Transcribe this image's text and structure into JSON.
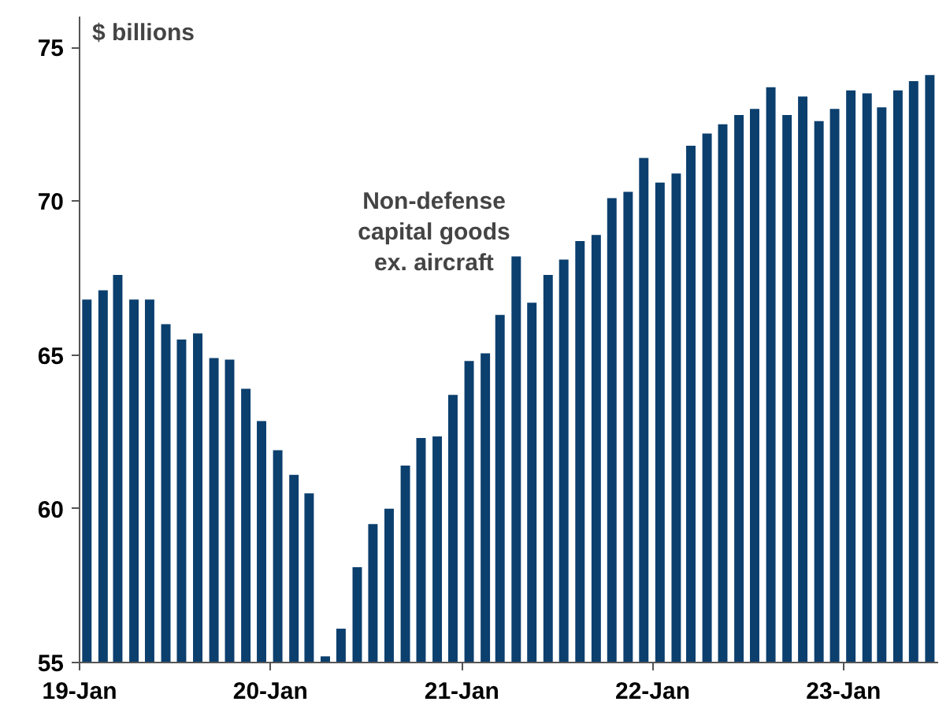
{
  "chart_data": {
    "type": "bar",
    "ylabel": "$ billions",
    "annotations": [
      "Non-defense\ncapital goods\nex. aircraft"
    ],
    "x": [
      "2019-01-15",
      "2019-02-15",
      "2019-03-15",
      "2019-04-15",
      "2019-05-15",
      "2019-06-15",
      "2019-07-15",
      "2019-08-15",
      "2019-09-15",
      "2019-10-15",
      "2019-11-15",
      "2019-12-15",
      "2020-01-15",
      "2020-02-15",
      "2020-03-15",
      "2020-04-15",
      "2020-05-15",
      "2020-06-15",
      "2020-07-15",
      "2020-08-15",
      "2020-09-15",
      "2020-10-15",
      "2020-11-15",
      "2020-12-15",
      "2021-01-15",
      "2021-02-15",
      "2021-03-15",
      "2021-04-15",
      "2021-05-15",
      "2021-06-15",
      "2021-07-15",
      "2021-08-15",
      "2021-09-15",
      "2021-10-15",
      "2021-11-15",
      "2021-12-15",
      "2022-01-15",
      "2022-02-15",
      "2022-03-15",
      "2022-04-15",
      "2022-05-15",
      "2022-06-15",
      "2022-07-15",
      "2022-08-15",
      "2022-09-15",
      "2022-10-15",
      "2022-11-15",
      "2022-12-15",
      "2023-01-15",
      "2023-02-15",
      "2023-03-15",
      "2023-04-15",
      "2023-05-15",
      "2023-06-15"
    ],
    "series": [
      {
        "color": "#0b3f6e",
        "values": [
          66.8,
          67.1,
          67.6,
          66.8,
          66.8,
          66.0,
          65.5,
          65.7,
          64.9,
          64.85,
          63.9,
          62.85,
          61.9,
          61.1,
          60.5,
          55.2,
          56.1,
          58.1,
          59.5,
          60.0,
          61.4,
          62.3,
          62.35,
          63.7,
          64.8,
          65.05,
          66.3,
          68.2,
          66.7,
          67.6,
          68.1,
          68.7,
          68.9,
          70.1,
          70.3,
          71.4,
          70.6,
          70.9,
          71.8,
          72.2,
          72.5,
          72.8,
          73.0,
          73.7,
          72.8,
          73.4,
          72.6,
          73.0,
          73.6,
          73.5,
          73.05,
          73.6,
          73.9,
          74.1
        ]
      }
    ],
    "xlim": [
      "2019-01-01",
      "2023-07-01"
    ],
    "xticks": [
      {
        "value": "2019-01",
        "label": "19-Jan"
      },
      {
        "value": "2020-01",
        "label": "20-Jan"
      },
      {
        "value": "2021-01",
        "label": "21-Jan"
      },
      {
        "value": "2022-01",
        "label": "22-Jan"
      },
      {
        "value": "2023-01",
        "label": "23-Jan"
      }
    ],
    "ylim": [
      55,
      76
    ],
    "yticks": [
      55,
      60,
      65,
      70,
      75
    ],
    "grid": false
  }
}
